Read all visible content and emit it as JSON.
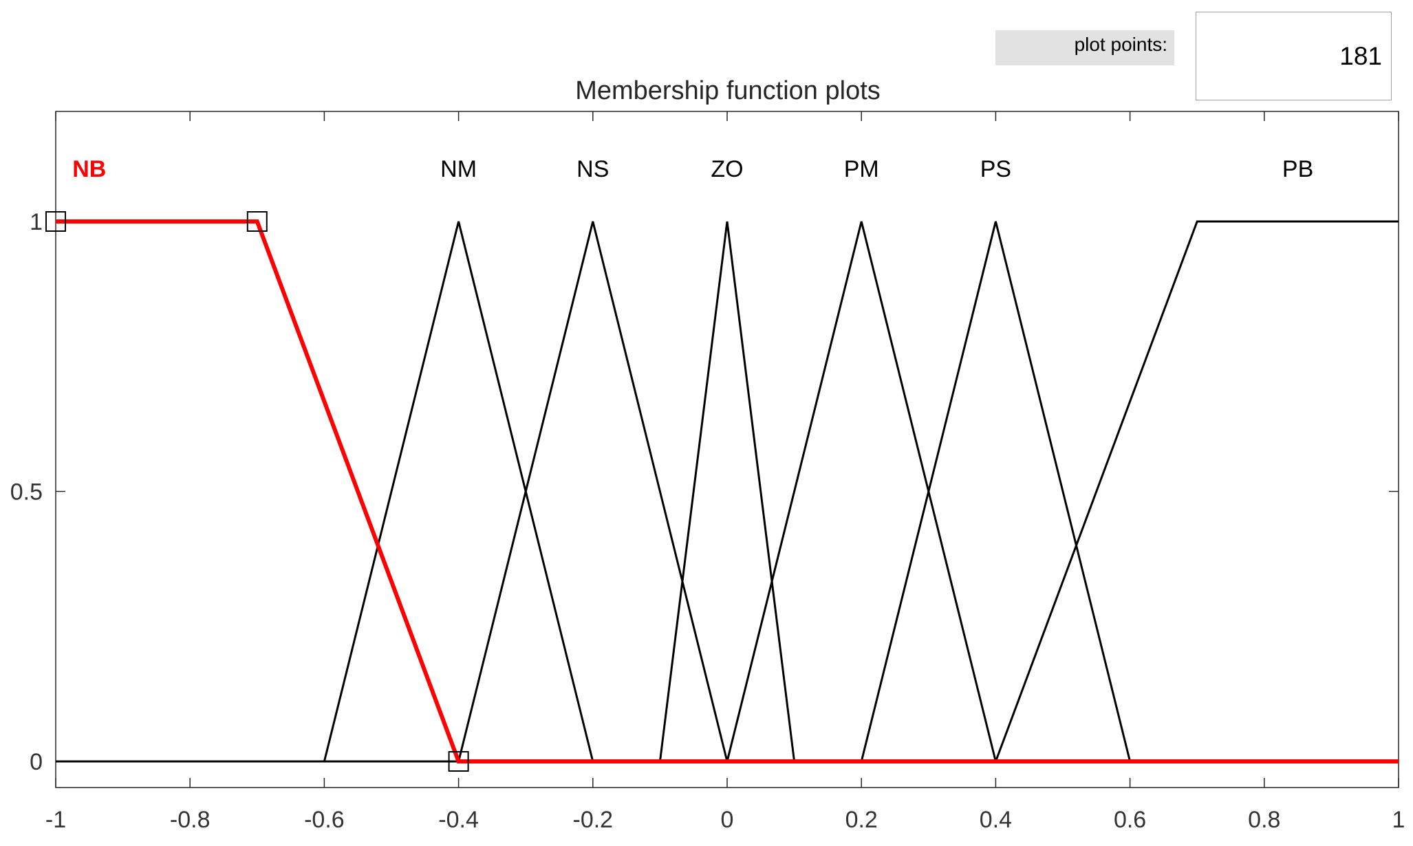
{
  "controls": {
    "plot_points_label": "plot points:",
    "plot_points_value": "181"
  },
  "chart_data": {
    "type": "line",
    "title": "Membership function plots",
    "xlabel": "",
    "ylabel": "",
    "xlim": [
      -1,
      1
    ],
    "ylim": [
      -0.05,
      1.2
    ],
    "x_ticks": [
      "-1",
      "-0.8",
      "-0.6",
      "-0.4",
      "-0.2",
      "0",
      "0.2",
      "0.4",
      "0.6",
      "0.8",
      "1"
    ],
    "y_ticks": [
      "0",
      "0.5",
      "1"
    ],
    "grid": false,
    "selected_series": "NB",
    "colors": {
      "selected": "#ff0000",
      "normal": "#000000"
    },
    "series": [
      {
        "name": "NB",
        "x": [
          -1,
          -0.7,
          -0.4,
          1
        ],
        "y": [
          1,
          1,
          0,
          0
        ],
        "label_x": -0.95
      },
      {
        "name": "NM",
        "x": [
          -1,
          -0.6,
          -0.4,
          -0.2,
          1
        ],
        "y": [
          0,
          0,
          1,
          0,
          0
        ],
        "label_x": -0.4
      },
      {
        "name": "NS",
        "x": [
          -1,
          -0.4,
          -0.2,
          0,
          1
        ],
        "y": [
          0,
          0,
          1,
          0,
          0
        ],
        "label_x": -0.2
      },
      {
        "name": "ZO",
        "x": [
          -1,
          -0.1,
          0,
          0.1,
          1
        ],
        "y": [
          0,
          0,
          1,
          0,
          0
        ],
        "label_x": 0
      },
      {
        "name": "PM",
        "x": [
          -1,
          0,
          0.2,
          0.4,
          1
        ],
        "y": [
          0,
          0,
          1,
          0,
          0
        ],
        "label_x": 0.2
      },
      {
        "name": "PS",
        "x": [
          -1,
          0.2,
          0.4,
          0.6,
          1
        ],
        "y": [
          0,
          0,
          1,
          0,
          0
        ],
        "label_x": 0.4
      },
      {
        "name": "PB",
        "x": [
          -1,
          0.4,
          0.7,
          1
        ],
        "y": [
          0,
          0,
          1,
          1
        ],
        "label_x": 0.85
      }
    ]
  }
}
